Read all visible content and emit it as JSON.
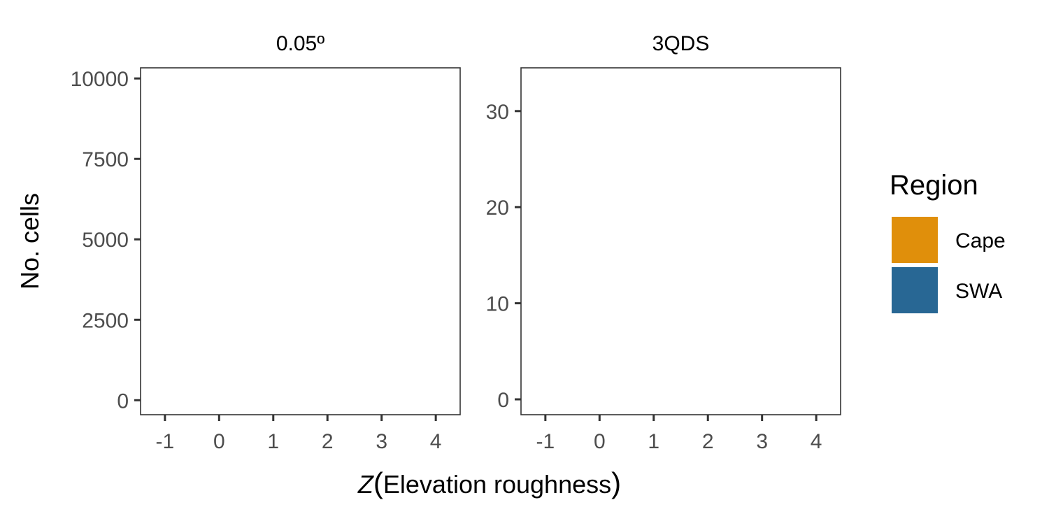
{
  "chart_data": {
    "type": "bar",
    "facets": [
      {
        "label": "0.05º",
        "x_ticks": [
          -1,
          0,
          1,
          2,
          3,
          4
        ],
        "xlim": [
          -1.45,
          4.45
        ],
        "y_ticks": [
          0,
          2500,
          5000,
          7500,
          10000
        ],
        "ylim": [
          -450,
          10330
        ],
        "series": [
          {
            "name": "Cape",
            "values": []
          },
          {
            "name": "SWA",
            "values": []
          }
        ]
      },
      {
        "label": "3QDS",
        "x_ticks": [
          -1,
          0,
          1,
          2,
          3,
          4
        ],
        "xlim": [
          -1.45,
          4.45
        ],
        "y_ticks": [
          0,
          10,
          20,
          30
        ],
        "ylim": [
          -1.6,
          34.5
        ],
        "series": [
          {
            "name": "Cape",
            "values": []
          },
          {
            "name": "SWA",
            "values": []
          }
        ]
      }
    ],
    "xlabel": {
      "italic": "Z",
      "text": "Elevation  roughness"
    },
    "ylabel": "No. cells",
    "grid": false,
    "legend": {
      "title": "Region",
      "position": "right",
      "items": [
        {
          "name": "Cape",
          "color": "#E08F0B"
        },
        {
          "name": "SWA",
          "color": "#286794"
        }
      ]
    }
  }
}
